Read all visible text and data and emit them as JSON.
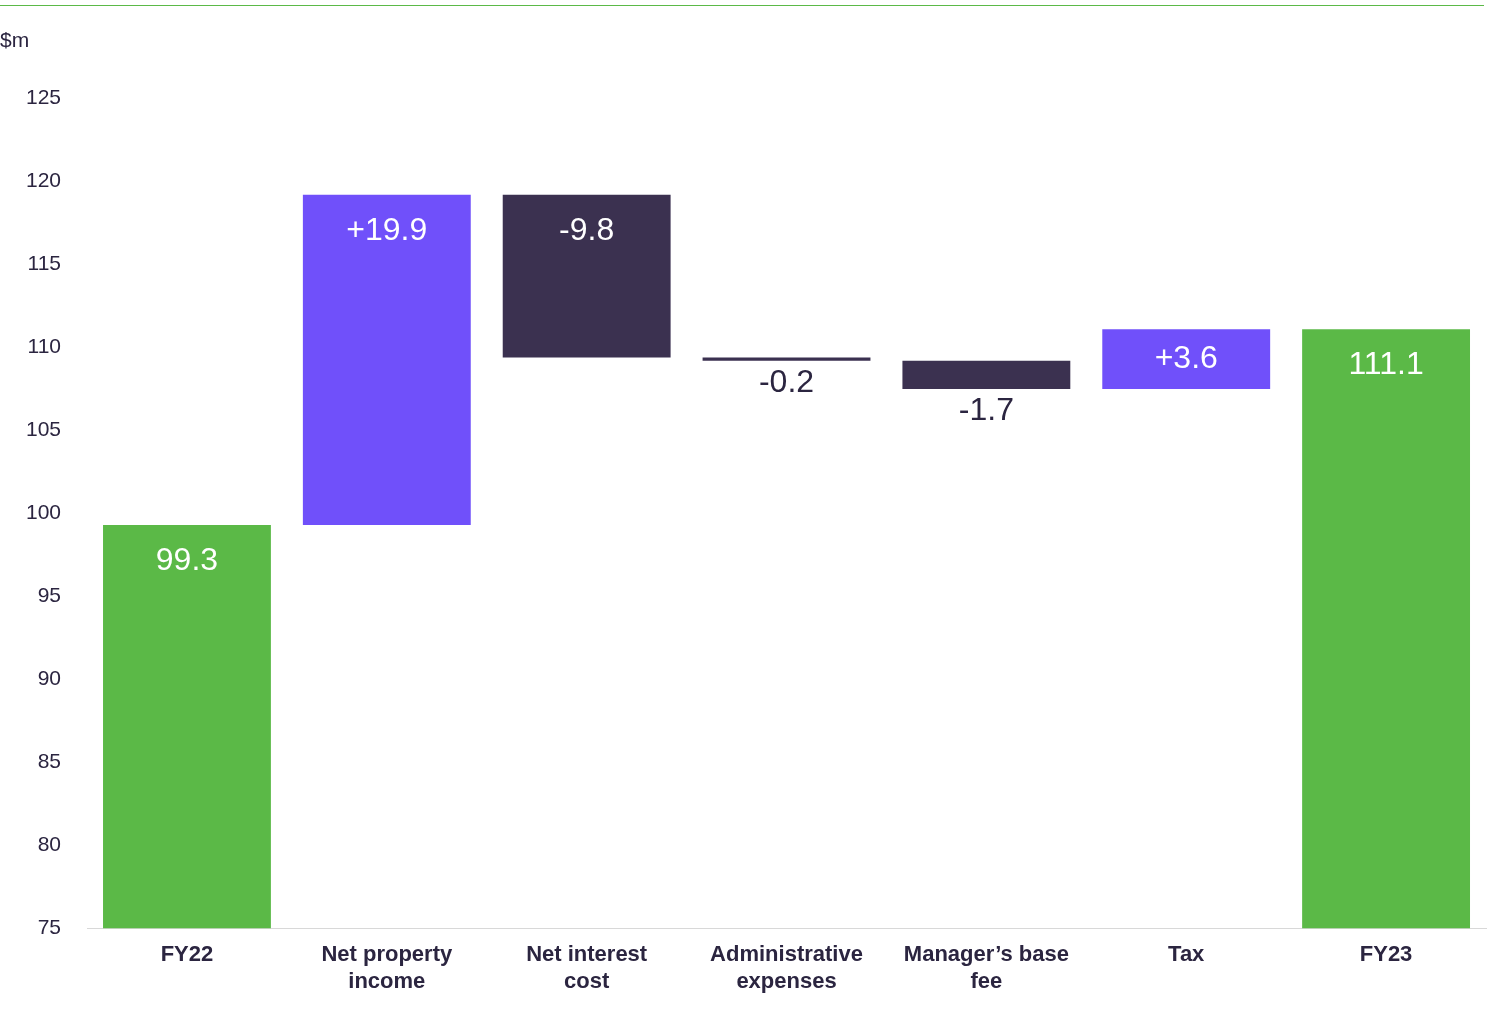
{
  "chart_data": {
    "type": "bar",
    "ylabel": "$m",
    "categories": [
      "FY22",
      "Net property income",
      "Net interest cost",
      "Administrative expenses",
      "Manager’s base fee",
      "Tax",
      "FY23"
    ],
    "values": [
      99.3,
      19.9,
      -9.8,
      -0.2,
      -1.7,
      3.6,
      111.1
    ],
    "base": [
      null,
      99.3,
      119.2,
      109.4,
      109.2,
      107.5,
      null
    ],
    "colors": [
      "#5bb947",
      "#7050fa",
      "#3b3150",
      "#3b3150",
      "#3b3150",
      "#7050fa",
      "#5bb947"
    ],
    "value_labels": [
      "99.3",
      "+19.9",
      "-9.8",
      "-0.2",
      "-1.7",
      "+3.6",
      "111.1"
    ],
    "ylim": [
      75,
      125
    ],
    "yticks": [
      75,
      80,
      85,
      90,
      95,
      100,
      105,
      110,
      115,
      120,
      125
    ],
    "grid": false,
    "legend": false
  }
}
